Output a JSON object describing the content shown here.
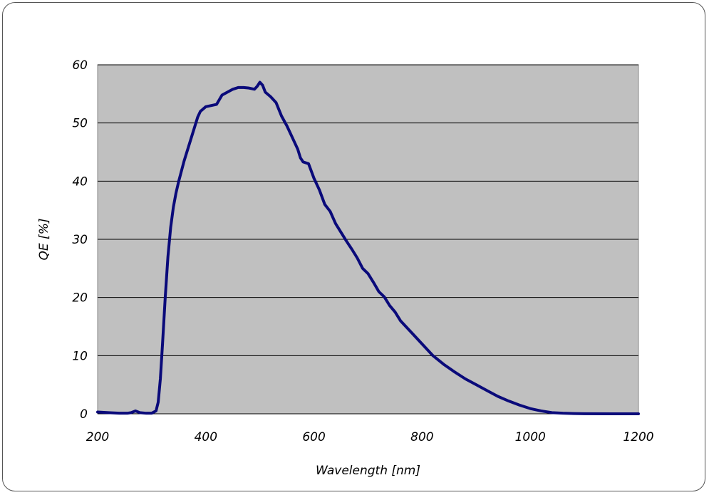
{
  "chart_data": {
    "type": "line",
    "xlabel": "Wavelength [nm]",
    "ylabel": "QE [%]",
    "xlim": [
      200,
      1200
    ],
    "ylim": [
      0,
      60
    ],
    "x_ticks": [
      200,
      400,
      600,
      800,
      1000,
      1200
    ],
    "y_ticks": [
      0,
      10,
      20,
      30,
      40,
      50,
      60
    ],
    "grid": "horizontal",
    "plot_background": "#c0c0c0",
    "series": [
      {
        "color": "#0a0a7a",
        "x": [
          200,
          220,
          240,
          255,
          262,
          270,
          278,
          290,
          300,
          308,
          312,
          316,
          320,
          325,
          330,
          335,
          340,
          345,
          350,
          360,
          370,
          380,
          385,
          390,
          400,
          410,
          420,
          430,
          440,
          450,
          460,
          470,
          480,
          490,
          495,
          500,
          505,
          510,
          520,
          530,
          540,
          550,
          560,
          570,
          575,
          580,
          590,
          600,
          610,
          620,
          630,
          640,
          650,
          660,
          670,
          680,
          690,
          700,
          710,
          720,
          730,
          740,
          750,
          760,
          780,
          800,
          820,
          840,
          860,
          880,
          900,
          920,
          940,
          960,
          980,
          1000,
          1020,
          1040,
          1060,
          1080,
          1100,
          1150,
          1200
        ],
        "y": [
          0.3,
          0.2,
          0.1,
          0.1,
          0.2,
          0.5,
          0.2,
          0.1,
          0.1,
          0.5,
          2,
          6,
          12,
          20,
          27,
          32,
          35.5,
          38,
          40,
          43.5,
          46.5,
          49.5,
          51,
          52,
          52.8,
          53,
          53.2,
          54.8,
          55.3,
          55.8,
          56.1,
          56.1,
          56.0,
          55.8,
          56.3,
          57,
          56.5,
          55.3,
          54.5,
          53.5,
          51.2,
          49.5,
          47.5,
          45.5,
          44,
          43.3,
          43.0,
          40.5,
          38.5,
          36,
          34.8,
          32.7,
          31.2,
          29.7,
          28.3,
          26.8,
          25,
          24.1,
          22.6,
          21,
          20.1,
          18.6,
          17.5,
          16,
          14,
          12,
          10,
          8.5,
          7.2,
          6,
          5,
          4,
          3,
          2.2,
          1.5,
          0.9,
          0.5,
          0.2,
          0.1,
          0.05,
          0.02,
          0,
          0
        ]
      }
    ]
  }
}
